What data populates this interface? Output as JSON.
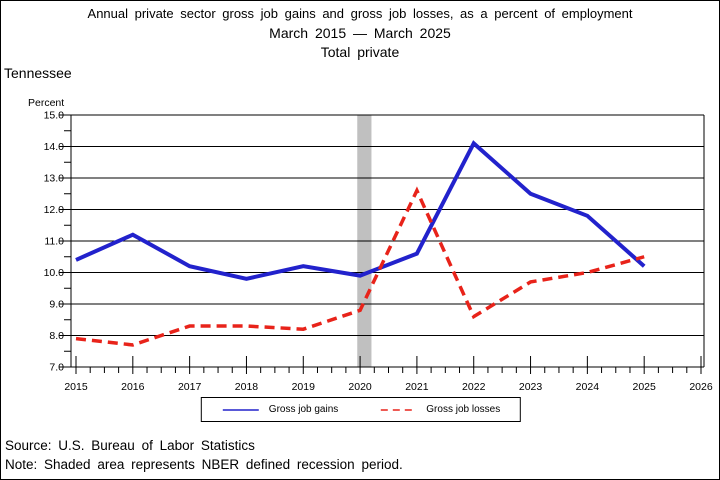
{
  "title": {
    "line1": "Annual private sector gross job gains and gross job losses, as a percent of employment",
    "line2": "March 2015 — March 2025",
    "line3": "Total private"
  },
  "region_label": "Tennessee",
  "axis": {
    "y_unit_label": "Percent"
  },
  "legend": {
    "gains_label": "Gross job gains",
    "losses_label": "Gross job losses"
  },
  "footer": {
    "source": "Source: U.S. Bureau of Labor Statistics",
    "note": "Note: Shaded area represents NBER defined recession period."
  },
  "colors": {
    "gains_line": "#2222cc",
    "losses_line": "#e8231a",
    "recession_band": "#c0c0c0",
    "axis": "#000000",
    "background": "#ffffff"
  },
  "chart_data": {
    "type": "line",
    "title": "Annual private sector gross job gains and gross job losses, as a percent of employment",
    "subtitle": "March 2015 — March 2025",
    "subtitle2": "Total private",
    "region": "Tennessee",
    "xlabel": "",
    "ylabel": "Percent",
    "x": [
      2015,
      2016,
      2017,
      2018,
      2019,
      2020,
      2021,
      2022,
      2023,
      2024,
      2025
    ],
    "series": [
      {
        "name": "Gross job gains",
        "line_style": "solid",
        "color": "#2222cc",
        "values": [
          10.4,
          11.2,
          10.2,
          9.8,
          10.2,
          9.9,
          10.6,
          14.1,
          12.5,
          11.8,
          10.2
        ]
      },
      {
        "name": "Gross job losses",
        "line_style": "dashed",
        "color": "#e8231a",
        "values": [
          7.9,
          7.7,
          8.3,
          8.3,
          8.2,
          8.8,
          12.6,
          8.6,
          9.7,
          10.0,
          10.5
        ]
      }
    ],
    "ylim": [
      7.0,
      15.0
    ],
    "y_major_step": 1.0,
    "y_minor_step": 0.5,
    "y_tick_labels": [
      "7.0",
      "8.0",
      "9.0",
      "10.0",
      "11.0",
      "12.0",
      "13.0",
      "14.0",
      "15.0"
    ],
    "x_axis_range": [
      2015,
      2026
    ],
    "x_tick_labels": [
      "2015",
      "2016",
      "2017",
      "2018",
      "2019",
      "2020",
      "2021",
      "2022",
      "2023",
      "2024",
      "2025",
      "2026"
    ],
    "x_minor_ticks_per_year": 3,
    "grid": "horizontal",
    "legend_position": "bottom-center",
    "recession_band": {
      "from_year": 2019.95,
      "to_year": 2020.2,
      "color": "#c0c0c0",
      "meaning": "NBER defined recession period"
    }
  }
}
